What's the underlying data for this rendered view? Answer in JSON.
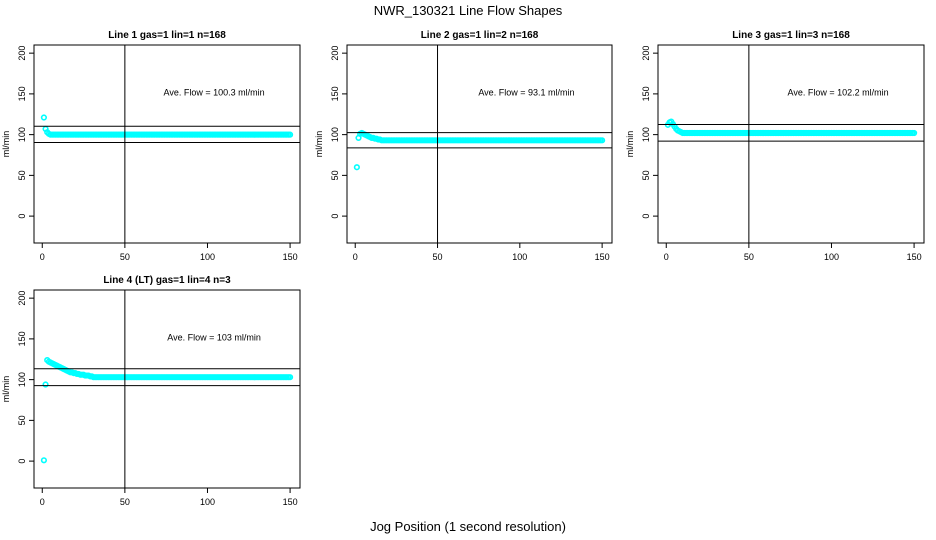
{
  "title": "NWR_130321  Line Flow Shapes",
  "xlabel": "Jog Position (1 second resolution)",
  "colors": {
    "points": "#00ffff",
    "lines": "#000000"
  },
  "chart_data": [
    {
      "type": "scatter",
      "title": "Line 1 gas=1 lin=1 n=168",
      "ylabel": "ml/min",
      "annotation": "Ave. Flow =  100.3  ml/min",
      "average": 100.3,
      "band": [
        90.3,
        110.3
      ],
      "vline": 50,
      "xlim": [
        -5,
        156
      ],
      "ylim": [
        -33,
        210
      ],
      "xticks": [
        0,
        50,
        100,
        150
      ],
      "yticks": [
        0,
        50,
        100,
        150,
        200
      ],
      "y_start": [
        121,
        107,
        103,
        101
      ],
      "y_rest": 100,
      "x_max": 150
    },
    {
      "type": "scatter",
      "title": "Line 2 gas=1 lin=2 n=168",
      "ylabel": "ml/min",
      "annotation": "Ave. Flow =  93.1  ml/min",
      "average": 93.1,
      "band": [
        83.8,
        102.4
      ],
      "vline": 50,
      "xlim": [
        -5,
        156
      ],
      "ylim": [
        -33,
        210
      ],
      "xticks": [
        0,
        50,
        100,
        150
      ],
      "yticks": [
        0,
        50,
        100,
        150,
        200
      ],
      "y_start": [
        60,
        96,
        101,
        102,
        101,
        100,
        99,
        98,
        97,
        96,
        96,
        95,
        95,
        94,
        94
      ],
      "y_rest": 93,
      "x_max": 150
    },
    {
      "type": "scatter",
      "title": "Line 3 gas=1 lin=3 n=168",
      "ylabel": "ml/min",
      "annotation": "Ave. Flow =  102.2  ml/min",
      "average": 102.2,
      "band": [
        92.0,
        112.4
      ],
      "vline": 50,
      "xlim": [
        -5,
        156
      ],
      "ylim": [
        -33,
        210
      ],
      "xticks": [
        0,
        50,
        100,
        150
      ],
      "yticks": [
        0,
        50,
        100,
        150,
        200
      ],
      "y_start": [
        112,
        115,
        116,
        113,
        110,
        107,
        105,
        104,
        103
      ],
      "y_rest": 102,
      "x_max": 150
    },
    {
      "type": "scatter",
      "title": "Line 4 (LT) gas=1 lin=4 n=3",
      "ylabel": "ml/min",
      "annotation": "Ave. Flow =  103  ml/min",
      "average": 103,
      "band": [
        92.7,
        113.3
      ],
      "vline": 50,
      "xlim": [
        -5,
        156
      ],
      "ylim": [
        -33,
        210
      ],
      "xticks": [
        0,
        50,
        100,
        150
      ],
      "yticks": [
        0,
        50,
        100,
        150,
        200
      ],
      "y_start": [
        1,
        94,
        124,
        122,
        121,
        120,
        119,
        118,
        117,
        116,
        115,
        114,
        113,
        112,
        111,
        110,
        109,
        109,
        108,
        108,
        107,
        107,
        106,
        106,
        106,
        105,
        105,
        105,
        104,
        104
      ],
      "y_rest": 103,
      "x_max": 150
    }
  ]
}
